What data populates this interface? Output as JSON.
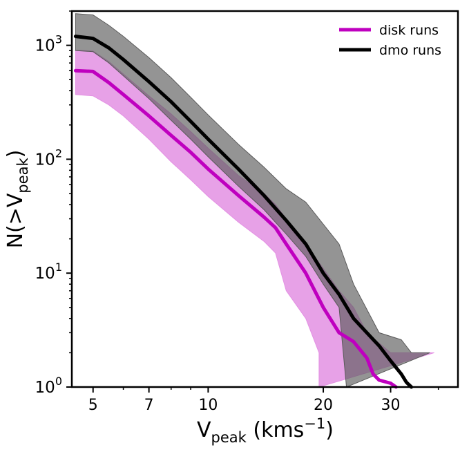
{
  "chart_data": {
    "type": "line",
    "xscale": "log",
    "yscale": "log",
    "xlim": [
      4.4,
      45
    ],
    "ylim": [
      1,
      2000
    ],
    "xticks": [
      {
        "value": 5,
        "label": "5"
      },
      {
        "value": 7,
        "label": "7"
      },
      {
        "value": 10,
        "label": "10"
      },
      {
        "value": 20,
        "label": "20"
      },
      {
        "value": 30,
        "label": "30"
      }
    ],
    "yticks": [
      {
        "value": 1,
        "base": "10",
        "exp": "0"
      },
      {
        "value": 10,
        "base": "10",
        "exp": "1"
      },
      {
        "value": 100,
        "base": "10",
        "exp": "2"
      },
      {
        "value": 1000,
        "base": "10",
        "exp": "3"
      }
    ],
    "xlabel": {
      "main": "V",
      "sub": "peak",
      "unit_pre": " (kms",
      "unit_sup": "−1",
      "unit_post": ")"
    },
    "ylabel": {
      "pre": "N(>V",
      "sub": "peak",
      "post": ")"
    },
    "legend": {
      "placement": "top-right"
    },
    "series": [
      {
        "name": "disk runs",
        "color": "#bf00bf",
        "band_color": "#e391e3",
        "x": [
          4.5,
          5,
          5.5,
          6,
          7,
          8,
          9,
          10,
          12,
          14,
          15,
          16,
          18,
          20,
          22,
          24,
          26,
          27,
          28,
          30,
          31
        ],
        "y": [
          600,
          590,
          470,
          370,
          240,
          162,
          115,
          82,
          48,
          31,
          25,
          18,
          10,
          5,
          3,
          2.5,
          1.8,
          1.3,
          1.15,
          1.08,
          1.0
        ],
        "band_low": [
          370,
          360,
          300,
          240,
          150,
          95,
          66,
          47,
          28,
          19,
          15,
          7,
          4,
          2,
          1
        ],
        "band_high": [
          910,
          890,
          720,
          560,
          360,
          250,
          175,
          125,
          72,
          50,
          40,
          30,
          18,
          11,
          7,
          5,
          3,
          2,
          2
        ],
        "band_x_low": [
          4.5,
          5,
          5.5,
          6,
          7,
          8,
          9,
          10,
          12,
          14,
          15,
          16,
          18,
          19.5,
          19.5
        ],
        "band_x_high": [
          4.5,
          5,
          5.5,
          6,
          7,
          8,
          9,
          10,
          12,
          14,
          15,
          16,
          18,
          20,
          22,
          24,
          26,
          30,
          39
        ]
      },
      {
        "name": "dmo runs",
        "color": "#000000",
        "band_color": "#5a5a5a",
        "x": [
          4.5,
          5,
          5.5,
          6,
          7,
          8,
          9,
          10,
          12,
          14,
          16,
          18,
          20,
          22,
          24,
          26,
          28,
          30,
          32,
          33,
          34
        ],
        "y": [
          1200,
          1150,
          950,
          750,
          480,
          320,
          215,
          150,
          82,
          48,
          29,
          18,
          10,
          6.5,
          4,
          3,
          2.3,
          1.7,
          1.3,
          1.1,
          1.0
        ],
        "band_low": [
          900,
          880,
          700,
          540,
          340,
          220,
          150,
          105,
          58,
          36,
          22,
          14,
          8,
          5,
          1
        ],
        "band_high": [
          1900,
          1850,
          1500,
          1200,
          780,
          520,
          350,
          245,
          135,
          85,
          55,
          42,
          18,
          8,
          3,
          2.6,
          2,
          2
        ],
        "band_x_low": [
          4.5,
          5,
          5.5,
          6,
          7,
          8,
          9,
          10,
          12,
          14,
          16,
          18,
          20,
          22,
          23
        ],
        "band_x_high": [
          4.5,
          5,
          5.5,
          6,
          7,
          8,
          9,
          10,
          12,
          14,
          16,
          18,
          22,
          24,
          28,
          32,
          34,
          38
        ]
      }
    ]
  }
}
